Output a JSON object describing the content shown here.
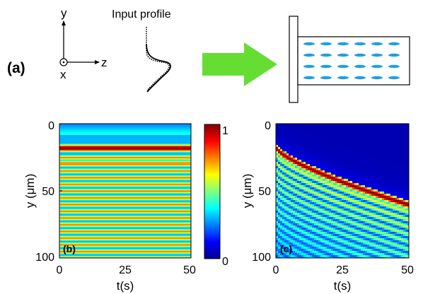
{
  "panel_a": {
    "label": "(a)",
    "axes": {
      "y": "y",
      "z": "z",
      "x": "x"
    },
    "profile_label": "Input profile",
    "arrow_color": "#66dd33",
    "director_color": "#1fa0e0",
    "director_rows": 4,
    "director_cols": 6
  },
  "panel_b": {
    "label": "(b)",
    "xlabel": "t(s)",
    "ylabel": "y (μm)",
    "xticks": [
      "0",
      "25",
      "50"
    ],
    "yticks": [
      "0",
      "50",
      "100"
    ]
  },
  "panel_c": {
    "label": "(c)",
    "xlabel": "t(s)",
    "ylabel": "y (μm)",
    "xticks": [
      "0",
      "25",
      "50"
    ],
    "yticks": [
      "0",
      "50",
      "100"
    ]
  },
  "colorbar": {
    "ticks": [
      "1",
      "0"
    ],
    "colormap": [
      "#00008f",
      "#0000ff",
      "#007fff",
      "#00ffff",
      "#7fff7f",
      "#ffff00",
      "#ff7f00",
      "#ff0000",
      "#7f0000"
    ]
  },
  "chart_data": [
    {
      "type": "heatmap",
      "panel": "(b)",
      "xlabel": "t(s)",
      "ylabel": "y (μm)",
      "xlim": [
        0,
        50
      ],
      "ylim": [
        0,
        100
      ],
      "clim": [
        0,
        1
      ],
      "description_values": {
        "main_band_y": 18,
        "secondary_band_y": 29,
        "banded_fringe_period": 5
      }
    },
    {
      "type": "heatmap",
      "panel": "(c)",
      "xlabel": "t(s)",
      "ylabel": "y (μm)",
      "xlim": [
        0,
        50
      ],
      "ylim": [
        0,
        100
      ],
      "clim": [
        0,
        1
      ],
      "description_values": {
        "ridge_start": [
          0,
          18
        ],
        "ridge_end": [
          50,
          60
        ]
      }
    }
  ]
}
